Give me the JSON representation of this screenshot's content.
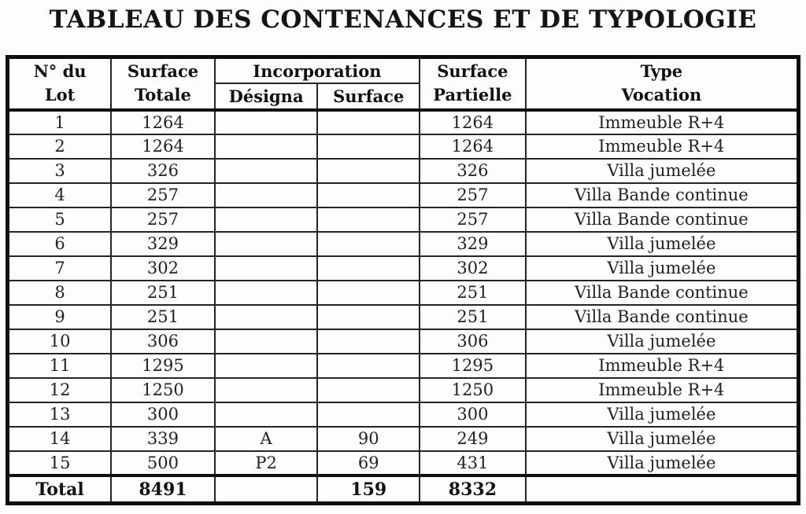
{
  "title": "TABLEAU DES CONTENANCES ET DE TYPOLOGIE",
  "table": {
    "headers": {
      "lot1": "N° du",
      "lot2": "Lot",
      "totale1": "Surface",
      "totale2": "Totale",
      "incorporation_group": "Incorporation",
      "incorporation_designa": "Désigna",
      "incorporation_surface": "Surface",
      "partielle1": "Surface",
      "partielle2": "Partielle",
      "type1": "Type",
      "type2": "Vocation"
    },
    "rows": [
      {
        "lot": "1",
        "surface_totale": "1264",
        "designa": "",
        "surface": "",
        "surface_partielle": "1264",
        "type_vocation": "Immeuble R+4"
      },
      {
        "lot": "2",
        "surface_totale": "1264",
        "designa": "",
        "surface": "",
        "surface_partielle": "1264",
        "type_vocation": "Immeuble R+4"
      },
      {
        "lot": "3",
        "surface_totale": "326",
        "designa": "",
        "surface": "",
        "surface_partielle": "326",
        "type_vocation": "Villa jumelée"
      },
      {
        "lot": "4",
        "surface_totale": "257",
        "designa": "",
        "surface": "",
        "surface_partielle": "257",
        "type_vocation": "Villa Bande continue"
      },
      {
        "lot": "5",
        "surface_totale": "257",
        "designa": "",
        "surface": "",
        "surface_partielle": "257",
        "type_vocation": "Villa Bande continue"
      },
      {
        "lot": "6",
        "surface_totale": "329",
        "designa": "",
        "surface": "",
        "surface_partielle": "329",
        "type_vocation": "Villa jumelée"
      },
      {
        "lot": "7",
        "surface_totale": "302",
        "designa": "",
        "surface": "",
        "surface_partielle": "302",
        "type_vocation": "Villa jumelée"
      },
      {
        "lot": "8",
        "surface_totale": "251",
        "designa": "",
        "surface": "",
        "surface_partielle": "251",
        "type_vocation": "Villa Bande continue"
      },
      {
        "lot": "9",
        "surface_totale": "251",
        "designa": "",
        "surface": "",
        "surface_partielle": "251",
        "type_vocation": "Villa Bande continue"
      },
      {
        "lot": "10",
        "surface_totale": "306",
        "designa": "",
        "surface": "",
        "surface_partielle": "306",
        "type_vocation": "Villa jumelée"
      },
      {
        "lot": "11",
        "surface_totale": "1295",
        "designa": "",
        "surface": "",
        "surface_partielle": "1295",
        "type_vocation": "Immeuble R+4"
      },
      {
        "lot": "12",
        "surface_totale": "1250",
        "designa": "",
        "surface": "",
        "surface_partielle": "1250",
        "type_vocation": "Immeuble R+4"
      },
      {
        "lot": "13",
        "surface_totale": "300",
        "designa": "",
        "surface": "",
        "surface_partielle": "300",
        "type_vocation": "Villa jumelée"
      },
      {
        "lot": "14",
        "surface_totale": "339",
        "designa": "A",
        "surface": "90",
        "surface_partielle": "249",
        "type_vocation": "Villa jumelée"
      },
      {
        "lot": "15",
        "surface_totale": "500",
        "designa": "P2",
        "surface": "69",
        "surface_partielle": "431",
        "type_vocation": "Villa jumelée"
      }
    ],
    "total": {
      "label": "Total",
      "surface_totale": "8491",
      "designa": "",
      "surface": "159",
      "surface_partielle": "8332",
      "type_vocation": ""
    }
  }
}
